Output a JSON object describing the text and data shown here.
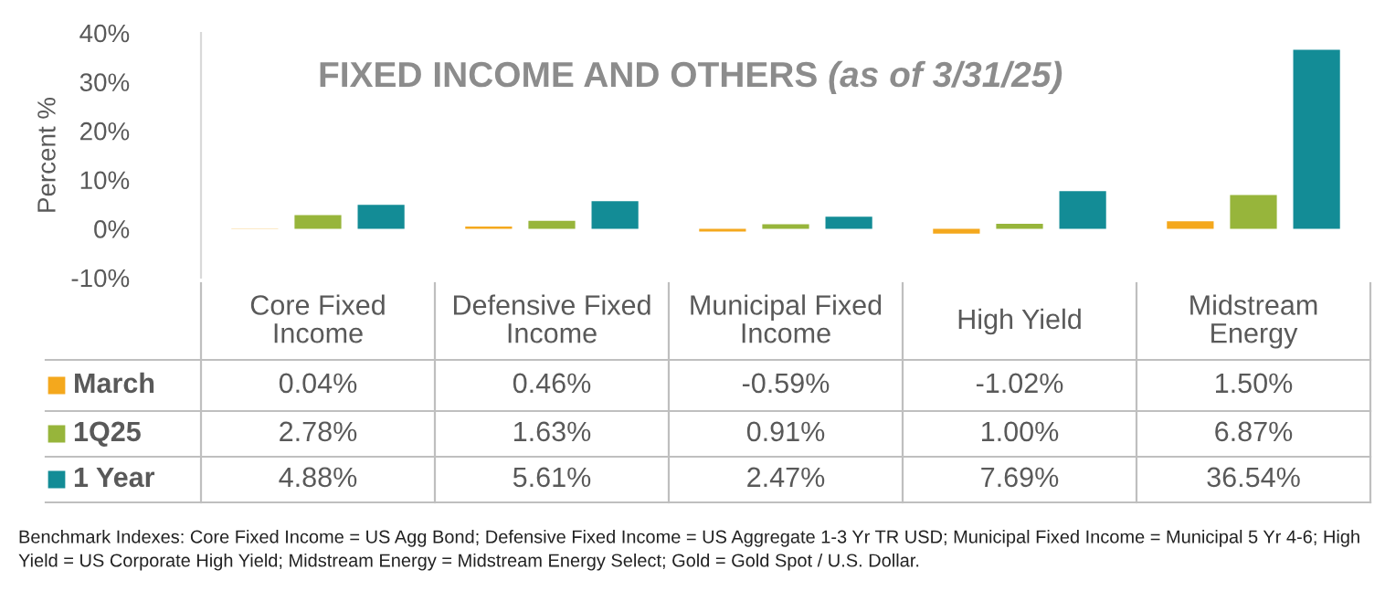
{
  "chart_data": {
    "type": "bar",
    "title": "FIXED INCOME AND OTHERS",
    "subtitle": "(as of 3/31/25)",
    "ylabel": "Percent %",
    "categories": [
      "Core Fixed Income",
      "Defensive Fixed Income",
      "Municipal Fixed Income",
      "High Yield",
      "Midstream Energy"
    ],
    "series": [
      {
        "name": "March",
        "color": "#f4a81d",
        "values": [
          0.04,
          0.46,
          -0.59,
          -1.02,
          1.5
        ],
        "value_labels": [
          "0.04%",
          "0.46%",
          "-0.59%",
          "-1.02%",
          "1.50%"
        ]
      },
      {
        "name": "1Q25",
        "color": "#97b53b",
        "values": [
          2.78,
          1.63,
          0.91,
          1.0,
          6.87
        ],
        "value_labels": [
          "2.78%",
          "1.63%",
          "0.91%",
          "1.00%",
          "6.87%"
        ]
      },
      {
        "name": "1 Year",
        "color": "#138c96",
        "values": [
          4.88,
          5.61,
          2.47,
          7.69,
          36.54
        ],
        "value_labels": [
          "4.88%",
          "5.61%",
          "2.47%",
          "7.69%",
          "36.54%"
        ]
      }
    ],
    "ylim": [
      -10,
      40
    ],
    "yticks": [
      {
        "value": -10,
        "label": "-10%"
      },
      {
        "value": 0,
        "label": "0%"
      },
      {
        "value": 10,
        "label": "10%"
      },
      {
        "value": 20,
        "label": "20%"
      },
      {
        "value": 30,
        "label": "30%"
      },
      {
        "value": 40,
        "label": "40%"
      }
    ],
    "tick_labels": "y",
    "grid": false,
    "legend": "bottom left",
    "annotations": [
      "Benchmark Indexes: Core Fixed Income = US Agg Bond; Defensive Fixed Income = US Aggregate 1-3 Yr TR USD; Municipal Fixed Income = Municipal 5 Yr 4-6; High Yield = US Corporate High Yield; Midstream Energy = Midstream Energy Select; Gold = Gold Spot / U.S. Dollar."
    ]
  }
}
